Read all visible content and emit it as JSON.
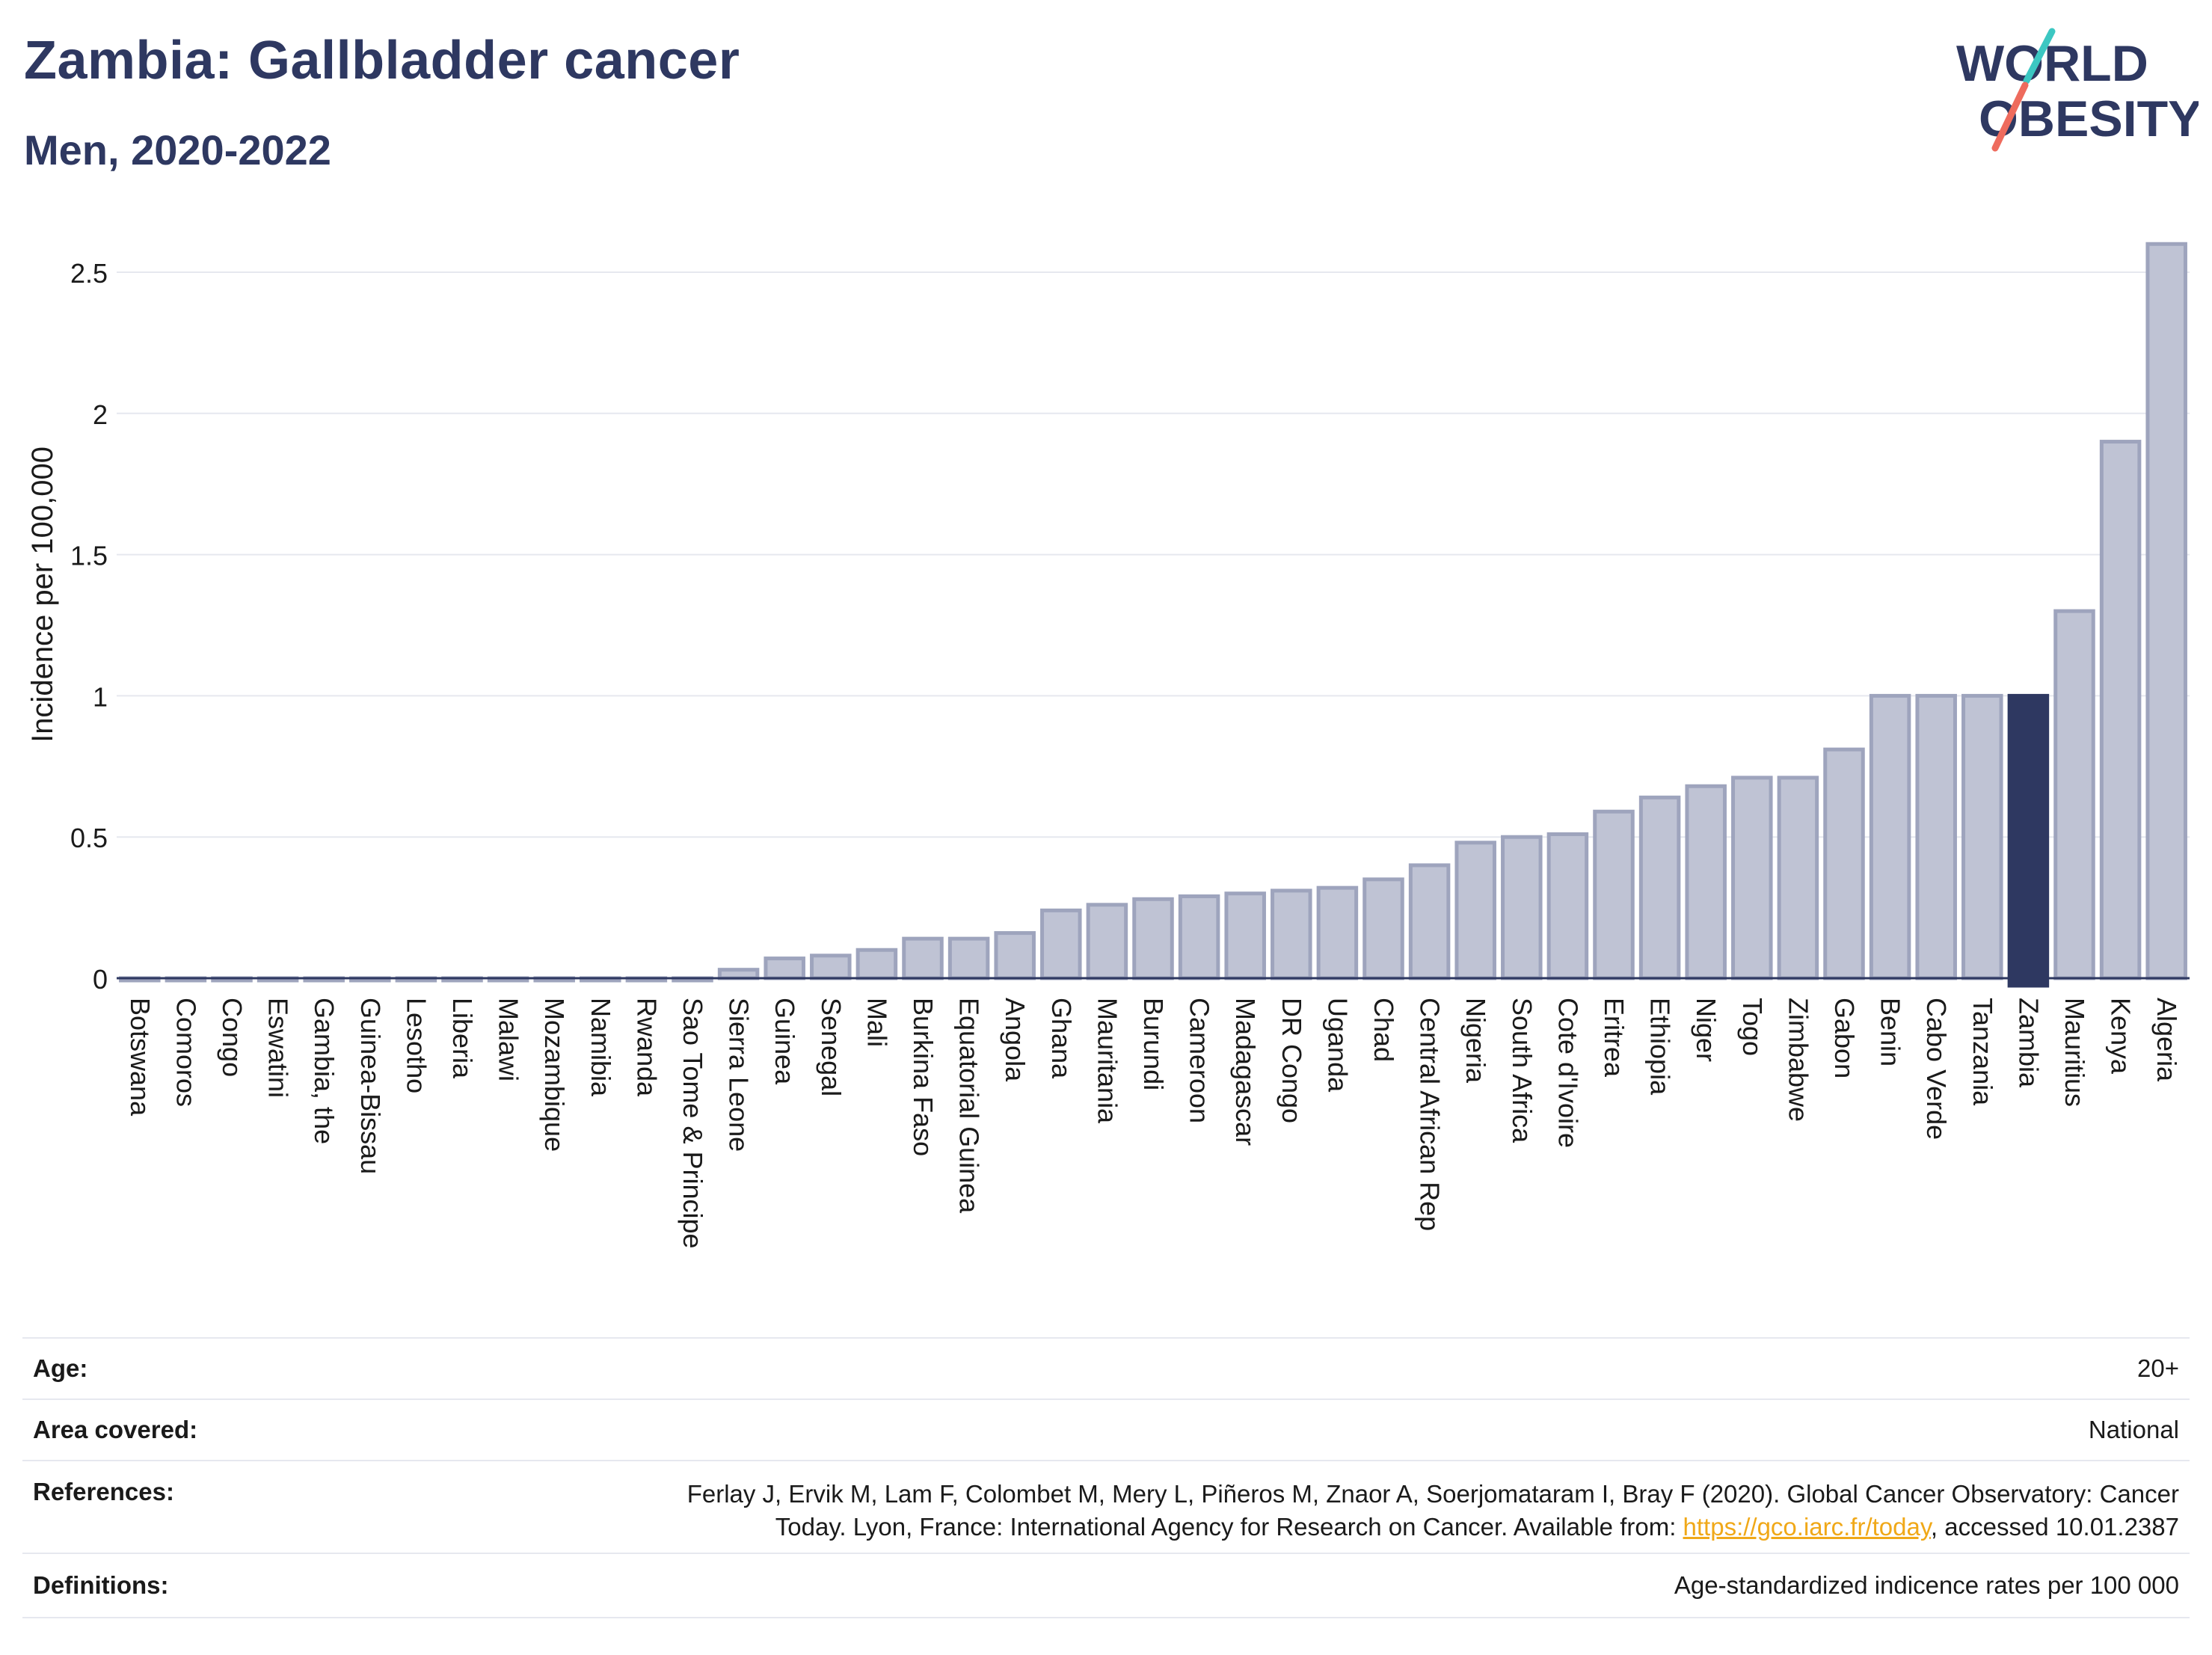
{
  "header": {
    "title": "Zambia: Gallbladder cancer",
    "subtitle": "Men, 2020-2022"
  },
  "logo": {
    "line1": "WORLD",
    "line2": "OBESITY",
    "accent_teal": "#3cc7c2",
    "accent_coral": "#ee6b5d"
  },
  "colors": {
    "bar_default": "#bfc3d4",
    "bar_border": "#9ea4bd",
    "bar_highlight": "#2e3861",
    "grid": "#e6e8ef",
    "text": "#2e3861"
  },
  "chart_data": {
    "type": "bar",
    "title": "Zambia: Gallbladder cancer",
    "subtitle": "Men, 2020-2022",
    "ylabel": "Incidence per 100,000",
    "xlabel": "",
    "ylim": [
      0,
      2.6
    ],
    "yticks": [
      0,
      0.5,
      1,
      1.5,
      2,
      2.5
    ],
    "ytick_labels": [
      "0",
      "0.5",
      "1",
      "1.5",
      "2",
      "2.5"
    ],
    "grid": true,
    "highlight": "Zambia",
    "categories": [
      "Botswana",
      "Comoros",
      "Congo",
      "Eswatini",
      "Gambia, the",
      "Guinea-Bissau",
      "Lesotho",
      "Liberia",
      "Malawi",
      "Mozambique",
      "Namibia",
      "Rwanda",
      "Sao Tome & Principe",
      "Sierra Leone",
      "Guinea",
      "Senegal",
      "Mali",
      "Burkina Faso",
      "Equatorial Guinea",
      "Angola",
      "Ghana",
      "Mauritania",
      "Burundi",
      "Cameroon",
      "Madagascar",
      "DR Congo",
      "Uganda",
      "Chad",
      "Central African Rep",
      "Nigeria",
      "South Africa",
      "Cote d'Ivoire",
      "Eritrea",
      "Ethiopia",
      "Niger",
      "Togo",
      "Zimbabwe",
      "Gabon",
      "Benin",
      "Cabo Verde",
      "Tanzania",
      "Zambia",
      "Mauritius",
      "Kenya",
      "Algeria"
    ],
    "values": [
      0,
      0,
      0,
      0,
      0,
      0,
      0,
      0,
      0,
      0,
      0,
      0,
      0,
      0.03,
      0.07,
      0.08,
      0.1,
      0.14,
      0.14,
      0.16,
      0.24,
      0.26,
      0.28,
      0.29,
      0.3,
      0.31,
      0.32,
      0.35,
      0.4,
      0.48,
      0.5,
      0.51,
      0.59,
      0.64,
      0.68,
      0.71,
      0.71,
      0.81,
      1.0,
      1.0,
      1.0,
      1.0,
      1.3,
      1.9,
      2.6
    ]
  },
  "info": {
    "rows": [
      {
        "label": "Age:",
        "value": "20+"
      },
      {
        "label": "Area covered:",
        "value": "National"
      },
      {
        "label": "References:",
        "value_line1": "Ferlay J, Ervik M, Lam F, Colombet M, Mery L, Piñeros M, Znaor A, Soerjomataram I, Bray F (2020). Global Cancer Observatory: Cancer",
        "value_line2_pre": "Today. Lyon, France: International Agency for Research on Cancer. Available from: ",
        "link": "https://gco.iarc.fr/today",
        "value_line2_post": ", accessed 10.01.2387"
      },
      {
        "label": "Definitions:",
        "value": "Age-standardized indicence rates per 100 000"
      }
    ]
  }
}
